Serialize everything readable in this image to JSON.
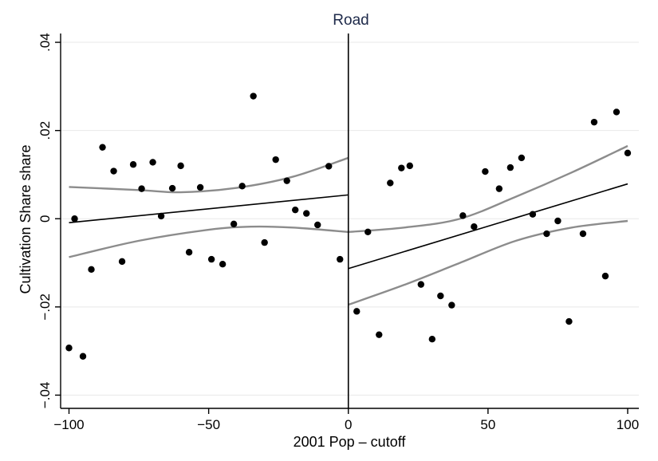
{
  "chart_data": {
    "type": "scatter",
    "title": "Road",
    "xlabel": "2001 Pop – cutoff",
    "ylabel": "Cultivation Share share",
    "xlim": [
      -103,
      104
    ],
    "ylim": [
      -0.043,
      0.042
    ],
    "x_ticks": [
      -100,
      -50,
      0,
      50,
      100
    ],
    "x_tick_labels": [
      "−100",
      "−50",
      "0",
      "50",
      "100"
    ],
    "y_ticks": [
      -0.04,
      -0.02,
      0,
      0.02,
      0.04
    ],
    "y_tick_labels": [
      "−.04",
      "−.02",
      "0",
      ".02",
      ".04"
    ],
    "grid": true,
    "cutoff_line_x": 0,
    "points": [
      [
        -100,
        -0.0293
      ],
      [
        -98,
        0.0
      ],
      [
        -95,
        -0.0312
      ],
      [
        -92,
        -0.0115
      ],
      [
        -88,
        0.0162
      ],
      [
        -84,
        0.0108
      ],
      [
        -81,
        -0.0097
      ],
      [
        -77,
        0.0123
      ],
      [
        -74,
        0.0068
      ],
      [
        -70,
        0.0128
      ],
      [
        -67,
        0.0006
      ],
      [
        -63,
        0.0069
      ],
      [
        -60,
        0.012
      ],
      [
        -57,
        -0.0076
      ],
      [
        -53,
        0.0071
      ],
      [
        -49,
        -0.0092
      ],
      [
        -45,
        -0.0103
      ],
      [
        -41,
        -0.0012
      ],
      [
        -38,
        0.0074
      ],
      [
        -34,
        0.0278
      ],
      [
        -30,
        -0.0054
      ],
      [
        -26,
        0.0134
      ],
      [
        -22,
        0.0086
      ],
      [
        -19,
        0.002
      ],
      [
        -15,
        0.0012
      ],
      [
        -11,
        -0.0014
      ],
      [
        -7,
        0.0119
      ],
      [
        -3,
        -0.0092
      ],
      [
        3,
        -0.021
      ],
      [
        7,
        -0.003
      ],
      [
        11,
        -0.0263
      ],
      [
        15,
        0.0081
      ],
      [
        19,
        0.0115
      ],
      [
        22,
        0.012
      ],
      [
        26,
        -0.0149
      ],
      [
        30,
        -0.0273
      ],
      [
        33,
        -0.0175
      ],
      [
        37,
        -0.0196
      ],
      [
        41,
        0.0007
      ],
      [
        45,
        -0.0018
      ],
      [
        49,
        0.0107
      ],
      [
        54,
        0.0068
      ],
      [
        58,
        0.0116
      ],
      [
        62,
        0.0138
      ],
      [
        66,
        0.001
      ],
      [
        71,
        -0.0034
      ],
      [
        75,
        -0.0005
      ],
      [
        79,
        -0.0233
      ],
      [
        84,
        -0.0034
      ],
      [
        88,
        0.0219
      ],
      [
        92,
        -0.013
      ],
      [
        96,
        0.0242
      ],
      [
        100,
        0.0149
      ]
    ],
    "fit_left": {
      "x": [
        -100,
        0
      ],
      "y": [
        -0.0009,
        0.0054
      ]
    },
    "fit_right": {
      "x": [
        0,
        100
      ],
      "y": [
        -0.0113,
        0.0079
      ]
    },
    "ci_left_upper": [
      [
        -100,
        0.0072
      ],
      [
        -75,
        0.0065
      ],
      [
        -60,
        0.006
      ],
      [
        -40,
        0.007
      ],
      [
        -20,
        0.0095
      ],
      [
        0,
        0.0138
      ]
    ],
    "ci_left_lower": [
      [
        -100,
        -0.0087
      ],
      [
        -75,
        -0.005
      ],
      [
        -50,
        -0.0025
      ],
      [
        -35,
        -0.0018
      ],
      [
        -20,
        -0.002
      ],
      [
        0,
        -0.003
      ]
    ],
    "ci_right_upper": [
      [
        0,
        -0.003
      ],
      [
        20,
        -0.002
      ],
      [
        40,
        0.0
      ],
      [
        60,
        0.005
      ],
      [
        80,
        0.0105
      ],
      [
        100,
        0.0165
      ]
    ],
    "ci_right_lower": [
      [
        0,
        -0.0195
      ],
      [
        20,
        -0.015
      ],
      [
        40,
        -0.01
      ],
      [
        60,
        -0.005
      ],
      [
        80,
        -0.002
      ],
      [
        100,
        -0.0005
      ]
    ],
    "colors": {
      "points": "#000000",
      "fit": "#000000",
      "ci": "#8c8c8c",
      "grid": "#e8e8e8",
      "title": "#1e2a4a"
    }
  }
}
